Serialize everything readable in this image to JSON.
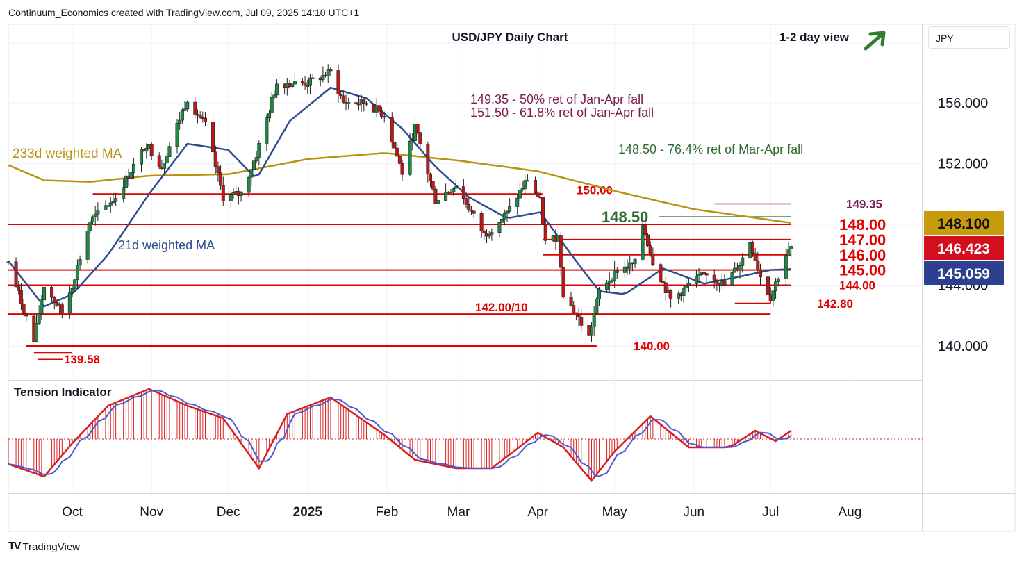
{
  "header": {
    "attribution": "Continuum_Economics created with TradingView.com, Jul 09, 2025 14:10 UTC+1"
  },
  "footer": {
    "brand": "TradingView",
    "logo": "TV"
  },
  "currency_selector": {
    "value": "JPY"
  },
  "colors": {
    "up": "#1e8a46",
    "down": "#c01818",
    "level": "#e00000",
    "ma21": "#2c4d8f",
    "ma233": "#b8930f",
    "retrace": "#2f6a2f",
    "ret_text": "#7a1e4e",
    "price_box": "#d30f1e",
    "ma233_box": "#c79b0e",
    "ma21_box": "#2d3f8f",
    "tension_fill": "#d91e1e",
    "tension_ma": "#4a59d6",
    "view_arrow": "#2f7d2f"
  },
  "chart_data": [
    {
      "type": "candlestick",
      "title": "USD/JPY Daily Chart",
      "view": "1-2 day view",
      "view_icon": "up-right-arrow-icon",
      "x_ticks": [
        "Oct",
        "Nov",
        "Dec",
        "2025",
        "Feb",
        "Mar",
        "Apr",
        "May",
        "Jun",
        "Jul",
        "Aug"
      ],
      "y_ticks": [
        "156.000",
        "152.000",
        "144.000",
        "140.000"
      ],
      "ylim": [
        137.8,
        161.0
      ],
      "x_range": [
        "2024-09-06",
        "2025-08-21"
      ],
      "grid": true,
      "price_path": [
        [
          "2024-09-06",
          145.5
        ],
        [
          "2024-09-16",
          140.3
        ],
        [
          "2024-09-20",
          144.0
        ],
        [
          "2024-09-27",
          142.2
        ],
        [
          "2024-10-01",
          144.0
        ],
        [
          "2024-10-08",
          148.2
        ],
        [
          "2024-10-18",
          149.8
        ],
        [
          "2024-10-30",
          153.3
        ],
        [
          "2024-11-05",
          151.8
        ],
        [
          "2024-11-15",
          156.3
        ],
        [
          "2024-11-22",
          154.5
        ],
        [
          "2024-11-29",
          149.8
        ],
        [
          "2024-12-06",
          150.0
        ],
        [
          "2024-12-12",
          152.6
        ],
        [
          "2024-12-20",
          157.3
        ],
        [
          "2025-01-01",
          157.3
        ],
        [
          "2025-01-10",
          158.0
        ],
        [
          "2025-01-15",
          156.0
        ],
        [
          "2025-01-24",
          156.0
        ],
        [
          "2025-01-31",
          155.2
        ],
        [
          "2025-02-07",
          151.4
        ],
        [
          "2025-02-12",
          154.4
        ],
        [
          "2025-02-20",
          149.6
        ],
        [
          "2025-02-28",
          150.6
        ],
        [
          "2025-03-11",
          147.3
        ],
        [
          "2025-03-20",
          148.7
        ],
        [
          "2025-03-28",
          151.0
        ],
        [
          "2025-04-02",
          149.5
        ],
        [
          "2025-04-04",
          146.8
        ],
        [
          "2025-04-09",
          147.2
        ],
        [
          "2025-04-11",
          143.5
        ],
        [
          "2025-04-21",
          140.6
        ],
        [
          "2025-04-25",
          143.6
        ],
        [
          "2025-05-02",
          145.0
        ],
        [
          "2025-05-09",
          145.4
        ],
        [
          "2025-05-12",
          148.0
        ],
        [
          "2025-05-16",
          145.6
        ],
        [
          "2025-05-23",
          143.0
        ],
        [
          "2025-05-30",
          144.0
        ],
        [
          "2025-06-06",
          144.8
        ],
        [
          "2025-06-13",
          144.0
        ],
        [
          "2025-06-19",
          145.4
        ],
        [
          "2025-06-23",
          146.9
        ],
        [
          "2025-06-27",
          144.6
        ],
        [
          "2025-07-01",
          143.2
        ],
        [
          "2025-07-04",
          144.6
        ],
        [
          "2025-07-07",
          146.0
        ],
        [
          "2025-07-09",
          146.42
        ]
      ],
      "ma21_path": [
        [
          "2024-09-06",
          145.6
        ],
        [
          "2024-09-20",
          142.6
        ],
        [
          "2024-10-01",
          143.4
        ],
        [
          "2024-10-15",
          146.0
        ],
        [
          "2024-10-31",
          150.0
        ],
        [
          "2024-11-15",
          153.3
        ],
        [
          "2024-12-01",
          152.9
        ],
        [
          "2024-12-12",
          151.0
        ],
        [
          "2024-12-25",
          154.8
        ],
        [
          "2025-01-10",
          157.0
        ],
        [
          "2025-01-24",
          156.3
        ],
        [
          "2025-02-07",
          154.3
        ],
        [
          "2025-02-20",
          151.8
        ],
        [
          "2025-03-05",
          149.8
        ],
        [
          "2025-03-20",
          148.4
        ],
        [
          "2025-04-02",
          148.8
        ],
        [
          "2025-04-15",
          145.8
        ],
        [
          "2025-04-25",
          143.6
        ],
        [
          "2025-05-05",
          143.4
        ],
        [
          "2025-05-20",
          145.1
        ],
        [
          "2025-06-05",
          144.1
        ],
        [
          "2025-06-20",
          144.6
        ],
        [
          "2025-07-01",
          145.0
        ],
        [
          "2025-07-09",
          145.059
        ]
      ],
      "ma233_path": [
        [
          "2024-09-06",
          151.9
        ],
        [
          "2024-09-20",
          150.9
        ],
        [
          "2024-10-08",
          150.8
        ],
        [
          "2024-10-31",
          151.2
        ],
        [
          "2024-12-01",
          151.3
        ],
        [
          "2025-01-01",
          152.3
        ],
        [
          "2025-01-31",
          152.7
        ],
        [
          "2025-03-01",
          152.2
        ],
        [
          "2025-04-01",
          151.5
        ],
        [
          "2025-05-01",
          150.2
        ],
        [
          "2025-06-01",
          149.0
        ],
        [
          "2025-07-09",
          148.1
        ]
      ],
      "price_labels": [
        {
          "label": "148.100",
          "value": 148.1,
          "role": "233d weighted MA"
        },
        {
          "label": "146.423",
          "value": 146.423,
          "role": "last price"
        },
        {
          "label": "145.059",
          "value": 145.059,
          "role": "21d weighted MA"
        }
      ],
      "levels": [
        {
          "label": "148.00",
          "value": 148.0,
          "from": "2024-09-06",
          "to": "2025-07-09"
        },
        {
          "label": "147.00",
          "value": 147.0,
          "from": "2025-04-03",
          "to": "2025-07-09"
        },
        {
          "label": "146.00",
          "value": 146.0,
          "from": "2025-04-03",
          "to": "2025-07-09"
        },
        {
          "label": "145.00",
          "value": 145.0,
          "from": "2024-09-06",
          "to": "2025-07-09"
        },
        {
          "label": "144.00",
          "value": 144.0,
          "from": "2024-09-06",
          "to": "2025-07-09"
        },
        {
          "label": "142.80",
          "value": 142.8,
          "from": "2025-06-17",
          "to": "2025-07-01"
        },
        {
          "label": "142.00/10",
          "value": 142.1,
          "from": "2024-09-06",
          "to": "2025-07-01"
        },
        {
          "label": "140.00",
          "value": 140.0,
          "from": "2024-09-13",
          "to": "2025-04-24"
        },
        {
          "label": "139.58",
          "value": 139.58,
          "from": "2024-09-16",
          "to": "2024-10-01"
        },
        {
          "label": "150.00",
          "value": 150.0,
          "from": "2024-10-09",
          "to": "2025-04-03"
        }
      ],
      "retracements": [
        {
          "label": "148.50",
          "value": 148.5,
          "from": "2025-05-12",
          "to": "2025-07-09"
        },
        {
          "label": "149.35",
          "value": 149.35,
          "from": "2025-06-01",
          "to": "2025-07-09"
        }
      ],
      "annotations": {
        "ret_50": "149.35 - 50% ret of Jan-Apr fall",
        "ret_618": "151.50 - 61.8% ret of Jan-Apr fall",
        "ret_764": "148.50 - 76.4% ret of Mar-Apr fall",
        "ma233_label": "233d weighted MA",
        "ma21_label": "21d weighted MA"
      }
    },
    {
      "type": "histogram",
      "title": "Tension Indicator",
      "zero_line": true,
      "ylim": [
        -1.3,
        1.3
      ],
      "path": [
        [
          "2024-09-06",
          -0.6
        ],
        [
          "2024-09-20",
          -0.9
        ],
        [
          "2024-10-01",
          -0.1
        ],
        [
          "2024-10-15",
          0.8
        ],
        [
          "2024-10-31",
          1.2
        ],
        [
          "2024-11-15",
          0.8
        ],
        [
          "2024-11-29",
          0.5
        ],
        [
          "2024-12-13",
          -0.7
        ],
        [
          "2024-12-24",
          0.6
        ],
        [
          "2025-01-10",
          1.0
        ],
        [
          "2025-01-31",
          0.1
        ],
        [
          "2025-02-12",
          -0.5
        ],
        [
          "2025-02-28",
          -0.7
        ],
        [
          "2025-03-14",
          -0.7
        ],
        [
          "2025-04-01",
          0.15
        ],
        [
          "2025-04-11",
          -0.2
        ],
        [
          "2025-04-22",
          -1.0
        ],
        [
          "2025-05-01",
          -0.3
        ],
        [
          "2025-05-15",
          0.55
        ],
        [
          "2025-05-30",
          -0.2
        ],
        [
          "2025-06-15",
          -0.2
        ],
        [
          "2025-06-25",
          0.2
        ],
        [
          "2025-07-03",
          -0.05
        ],
        [
          "2025-07-09",
          0.2
        ]
      ]
    }
  ]
}
